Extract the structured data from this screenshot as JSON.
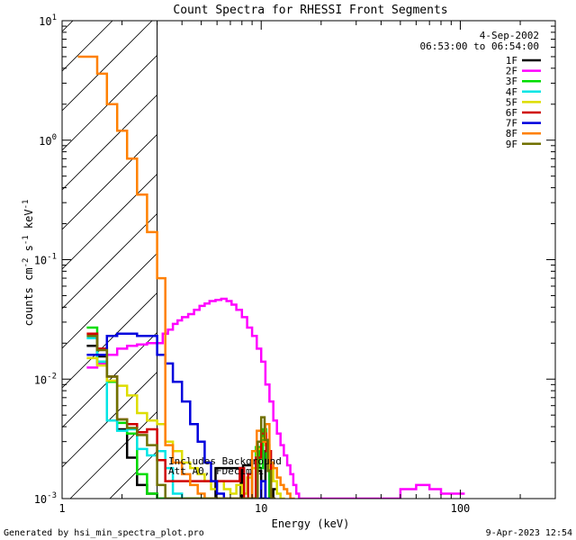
{
  "chart_data": {
    "type": "line",
    "title": "Count Spectra for RHESSI Front Segments",
    "xlabel": "Energy (keV)",
    "ylabel": "counts cm",
    "ylabel_sup1": "-2",
    "ylabel_mid": " s",
    "ylabel_sup2": "-1",
    "ylabel_end": " keV",
    "ylabel_sup3": "-1",
    "xscale": "log",
    "yscale": "log",
    "xlim": [
      1,
      300
    ],
    "ylim": [
      0.001,
      10
    ],
    "xticks": [
      {
        "value": 1,
        "label": "1"
      },
      {
        "value": 10,
        "label": "10"
      },
      {
        "value": 100,
        "label": "100"
      }
    ],
    "yticks": [
      {
        "value": 10,
        "base": "10",
        "exp": "1"
      },
      {
        "value": 1,
        "base": "10",
        "exp": "0"
      },
      {
        "value": 0.1,
        "base": "10",
        "exp": "-1"
      },
      {
        "value": 0.01,
        "base": "10",
        "exp": "-2"
      },
      {
        "value": 0.001,
        "base": "10",
        "exp": "-3"
      }
    ],
    "date": "4-Sep-2002",
    "time_range": "06:53:00 to 06:54:00",
    "annotation_line1": "Includes Background",
    "annotation_line2": "Att A0, FDecim 1",
    "hatch_region_kev": [
      1,
      3.0
    ],
    "series": [
      {
        "name": "1F",
        "color": "#000000",
        "x": [
          1.33,
          1.5,
          1.68,
          1.89,
          2.12,
          2.38,
          2.67,
          3.0,
          5.7,
          5.9,
          7.9,
          8.1,
          9.0,
          9.4,
          10.0,
          10.5,
          11.0,
          11.5
        ],
        "y": [
          0.019,
          0.0155,
          0.0105,
          0.0038,
          0.0022,
          0.0013,
          0.0011,
          0.001,
          0.001,
          0.0018,
          0.001,
          0.0019,
          0.001,
          0.0017,
          0.001,
          0.0025,
          0.001,
          0.0012
        ]
      },
      {
        "name": "2F",
        "color": "#ff00ff",
        "x": [
          1.33,
          1.5,
          1.68,
          1.89,
          2.12,
          2.38,
          2.67,
          3.0,
          3.2,
          3.4,
          3.6,
          3.8,
          4.0,
          4.3,
          4.6,
          4.9,
          5.2,
          5.5,
          5.9,
          6.3,
          6.7,
          7.1,
          7.5,
          8.0,
          8.5,
          9.0,
          9.5,
          10.0,
          10.5,
          11.0,
          11.5,
          12.0,
          12.5,
          13.0,
          13.5,
          14.0,
          14.5,
          15.0,
          15.5,
          16.0,
          16.5,
          17.0,
          17.5,
          18.0,
          50,
          60,
          70,
          80,
          100
        ],
        "y": [
          0.0125,
          0.0135,
          0.016,
          0.018,
          0.019,
          0.0195,
          0.02,
          0.02,
          0.024,
          0.026,
          0.029,
          0.031,
          0.033,
          0.035,
          0.038,
          0.041,
          0.043,
          0.045,
          0.046,
          0.047,
          0.045,
          0.042,
          0.038,
          0.033,
          0.027,
          0.023,
          0.018,
          0.014,
          0.009,
          0.0065,
          0.0045,
          0.0035,
          0.0028,
          0.0023,
          0.0019,
          0.0016,
          0.0013,
          0.0011,
          0.001,
          0.001,
          0.001,
          0.001,
          0.001,
          0.001,
          0.0012,
          0.0013,
          0.0012,
          0.0011,
          0.0011
        ]
      },
      {
        "name": "3F",
        "color": "#00dd00",
        "x": [
          1.33,
          1.5,
          1.68,
          1.89,
          2.12,
          2.38,
          2.67,
          3.0,
          9.4,
          9.8,
          10.2,
          10.6,
          11.0
        ],
        "y": [
          0.027,
          0.014,
          0.0095,
          0.0043,
          0.0035,
          0.0016,
          0.0011,
          0.001,
          0.0027,
          0.0018,
          0.0038,
          0.0022,
          0.001
        ]
      },
      {
        "name": "4F",
        "color": "#00e5e5",
        "x": [
          1.33,
          1.5,
          1.68,
          1.89,
          2.12,
          2.38,
          2.67,
          3.0,
          3.3,
          3.6,
          4.0
        ],
        "y": [
          0.022,
          0.014,
          0.0045,
          0.0037,
          0.0038,
          0.0026,
          0.0023,
          0.0025,
          0.0018,
          0.0011,
          0.001
        ]
      },
      {
        "name": "5F",
        "color": "#dddd00",
        "x": [
          1.33,
          1.5,
          1.68,
          1.89,
          2.12,
          2.38,
          2.67,
          3.0,
          3.3,
          3.6,
          4.0,
          4.4,
          4.8,
          5.2,
          5.6,
          6.0,
          6.5,
          7.0,
          7.5,
          8.0,
          8.5,
          9.0,
          9.5,
          10.0,
          10.5,
          11.0,
          11.5,
          12.0,
          12.5
        ],
        "y": [
          0.015,
          0.013,
          0.0097,
          0.0088,
          0.0073,
          0.0052,
          0.0045,
          0.0042,
          0.003,
          0.0025,
          0.002,
          0.0018,
          0.0016,
          0.0014,
          0.0012,
          0.0014,
          0.0012,
          0.0011,
          0.0013,
          0.0011,
          0.0015,
          0.0018,
          0.0026,
          0.0032,
          0.0028,
          0.0018,
          0.0014,
          0.0011,
          0.001
        ]
      },
      {
        "name": "6F",
        "color": "#d00000",
        "x": [
          1.33,
          1.5,
          1.68,
          1.89,
          2.12,
          2.38,
          2.67,
          3.0,
          3.3,
          7.8,
          8.2,
          8.6,
          9.0,
          9.4,
          10.0,
          10.6,
          11.2
        ],
        "y": [
          0.024,
          0.018,
          0.0105,
          0.0046,
          0.0042,
          0.0036,
          0.0038,
          0.0021,
          0.0014,
          0.0018,
          0.001,
          0.0016,
          0.001,
          0.0022,
          0.0035,
          0.0025,
          0.001
        ]
      },
      {
        "name": "7F",
        "color": "#0000dd",
        "x": [
          1.33,
          1.5,
          1.68,
          1.89,
          2.12,
          2.38,
          2.67,
          3.0,
          3.3,
          3.6,
          4.0,
          4.4,
          4.8,
          5.2,
          5.6,
          6.0,
          6.5,
          7.0,
          10.0,
          10.5
        ],
        "y": [
          0.016,
          0.016,
          0.023,
          0.024,
          0.024,
          0.023,
          0.023,
          0.016,
          0.0135,
          0.0095,
          0.0065,
          0.0042,
          0.003,
          0.002,
          0.0014,
          0.0011,
          0.001,
          0.001,
          0.0014,
          0.001
        ]
      },
      {
        "name": "8F",
        "color": "#ff8000",
        "x": [
          1.2,
          1.33,
          1.5,
          1.68,
          1.89,
          2.12,
          2.38,
          2.67,
          3.0,
          3.3,
          3.6,
          4.0,
          4.4,
          4.8,
          5.2,
          5.6,
          6.0,
          9.0,
          9.5,
          10.0,
          10.5,
          11.0,
          11.5,
          12.0,
          12.5,
          13.0,
          13.5,
          14.0
        ],
        "y": [
          5.0,
          5.0,
          3.6,
          2.0,
          1.2,
          0.7,
          0.35,
          0.17,
          0.07,
          0.0028,
          0.002,
          0.0016,
          0.0013,
          0.0011,
          0.001,
          0.001,
          0.001,
          0.0025,
          0.0037,
          0.003,
          0.0042,
          0.002,
          0.0018,
          0.0015,
          0.0013,
          0.0012,
          0.0011,
          0.001
        ]
      },
      {
        "name": "9F",
        "color": "#707000",
        "x": [
          1.33,
          1.5,
          1.68,
          1.89,
          2.12,
          2.38,
          2.67,
          3.0,
          3.3,
          9.6,
          10.0,
          10.4,
          10.8,
          11.2
        ],
        "y": [
          0.023,
          0.0175,
          0.0105,
          0.0046,
          0.0039,
          0.0034,
          0.0028,
          0.0013,
          0.001,
          0.003,
          0.0048,
          0.0031,
          0.0017,
          0.001
        ]
      }
    ]
  },
  "footer": {
    "generated_by": "Generated by hsi_min_spectra_plot.pro",
    "timestamp": "9-Apr-2023 12:54"
  }
}
